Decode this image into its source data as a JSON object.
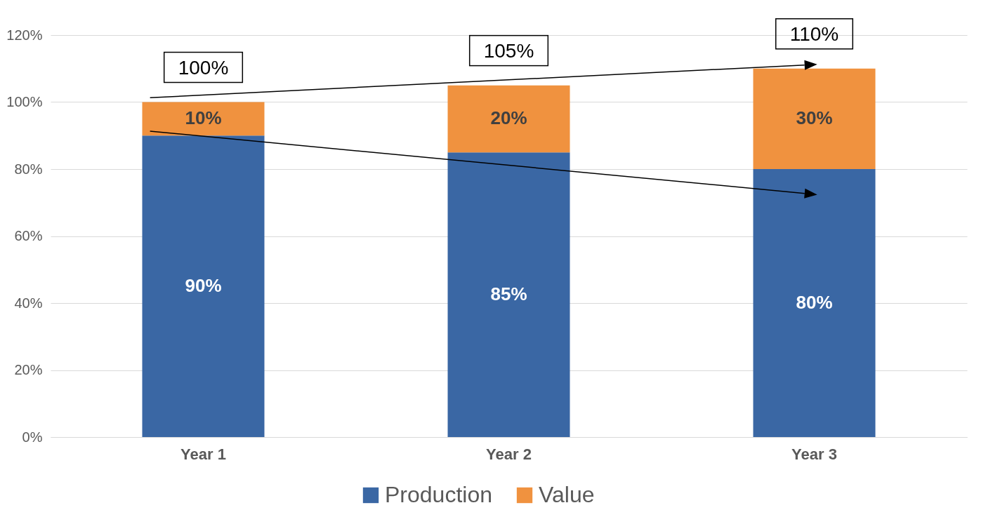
{
  "chart_data": {
    "type": "bar",
    "stacked": true,
    "categories": [
      "Year 1",
      "Year 2",
      "Year 3"
    ],
    "series": [
      {
        "name": "Production",
        "color": "#3a67a4",
        "values": [
          90,
          85,
          80
        ],
        "value_labels": [
          "90%",
          "85%",
          "80%"
        ]
      },
      {
        "name": "Value",
        "color": "#f0923f",
        "values": [
          10,
          20,
          30
        ],
        "value_labels": [
          "10%",
          "20%",
          "30%"
        ]
      }
    ],
    "totals": [
      "100%",
      "105%",
      "110%"
    ],
    "ylim": [
      0,
      120
    ],
    "yticks": [
      {
        "value": 0,
        "label": "0%"
      },
      {
        "value": 20,
        "label": "20%"
      },
      {
        "value": 40,
        "label": "40%"
      },
      {
        "value": 60,
        "label": "60%"
      },
      {
        "value": 80,
        "label": "80%"
      },
      {
        "value": 100,
        "label": "100%"
      },
      {
        "value": 120,
        "label": "120%"
      }
    ],
    "grid": "y",
    "legend": "bottom"
  }
}
